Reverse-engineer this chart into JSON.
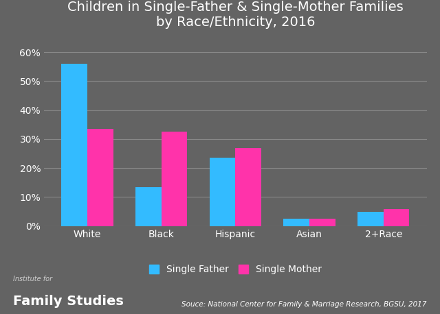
{
  "title": "Children in Single-Father & Single-Mother Families\nby Race/Ethnicity, 2016",
  "categories": [
    "White",
    "Black",
    "Hispanic",
    "Asian",
    "2+Race"
  ],
  "single_father": [
    0.56,
    0.135,
    0.235,
    0.025,
    0.048
  ],
  "single_mother": [
    0.335,
    0.325,
    0.27,
    0.025,
    0.058
  ],
  "father_color": "#33BBFF",
  "mother_color": "#FF33AA",
  "background_color": "#636363",
  "text_color": "#FFFFFF",
  "yticks": [
    0,
    0.1,
    0.2,
    0.3,
    0.4,
    0.5,
    0.6
  ],
  "ylim": [
    0,
    0.65
  ],
  "legend_labels": [
    "Single Father",
    "Single Mother"
  ],
  "source_text": "Souce: National Center for Family & Marriage Research, BGSU, 2017",
  "institute_text_top": "Institute for",
  "institute_text_bottom": "Family Studies",
  "bar_width": 0.35,
  "title_fontsize": 14,
  "axis_label_fontsize": 10,
  "legend_fontsize": 10,
  "source_fontsize": 7.5
}
